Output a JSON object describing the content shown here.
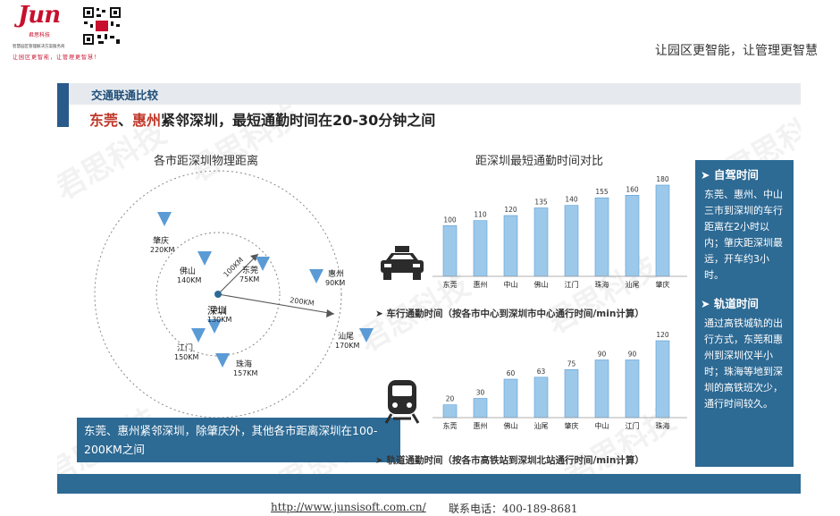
{
  "brand": {
    "logo_text": "Jun",
    "logo_sub": "君思科技",
    "org_line": "智慧园区管理解决方案服务商",
    "slogan": "让园区更智能，让管理更智慧！"
  },
  "header": {
    "slogan_right": "让园区更智能，让管理更智慧"
  },
  "slide": {
    "section_title": "交通联通比较",
    "headline_red1": "东莞",
    "headline_sep": "、",
    "headline_red2": "惠州",
    "headline_rest": "紧邻深圳，最短通勤时间在20-30分钟之间",
    "watermark": "君思科技",
    "map": {
      "title": "各市距深圳物理距离",
      "center": "深圳",
      "ring_labels": [
        "100KM",
        "200KM"
      ],
      "cities": [
        {
          "name": "肇庆",
          "dist": "220KM"
        },
        {
          "name": "佛山",
          "dist": "140KM"
        },
        {
          "name": "东莞",
          "dist": "75KM"
        },
        {
          "name": "惠州",
          "dist": "90KM"
        },
        {
          "name": "中山",
          "dist": "130KM"
        },
        {
          "name": "江门",
          "dist": "150KM"
        },
        {
          "name": "珠海",
          "dist": "157KM"
        },
        {
          "name": "汕尾",
          "dist": "170KM"
        }
      ],
      "caption": "东莞、惠州紧邻深圳，除肇庆外，其他各市距离深圳在100-200KM之间"
    },
    "charts_title": "距深圳最短通勤时间对比",
    "chart1_caption": "车行通勤时间（按各市中心到深圳市中心通行时间/min计算）",
    "chart2_caption": "轨道通勤时间（按各市高铁站到深圳北站通行时间/min计算）",
    "info": {
      "h1": "自驾时间",
      "p1": "东莞、惠州、中山三市到深圳的车行距离在2小时以内；肇庆距深圳最远，开车约3小时。",
      "h2": "轨道时间",
      "p2": "通过高铁城轨的出行方式，东莞和惠州到深圳仅半小时；珠海等地到深圳的高铁班次少，通行时间较久。"
    }
  },
  "footer": {
    "url": "http://www.junsisoft.com.cn/",
    "tel": "联系电话：400-189-8681"
  },
  "colors": {
    "bar": "#9cc9ea",
    "bar_edge": "#5b9bd5",
    "panel": "#2d6a94",
    "accent_red": "#c0392b",
    "title_blue": "#1f4e79"
  },
  "chart_data": [
    {
      "type": "bar",
      "categories": [
        "东莞",
        "惠州",
        "中山",
        "佛山",
        "江门",
        "珠海",
        "汕尾",
        "肇庆"
      ],
      "values": [
        100,
        110,
        120,
        135,
        140,
        155,
        160,
        180
      ],
      "ylim": [
        0,
        180
      ],
      "grid": false,
      "legend": "none"
    },
    {
      "type": "bar",
      "categories": [
        "东莞",
        "惠州",
        "佛山",
        "汕尾",
        "肇庆",
        "中山",
        "江门",
        "珠海"
      ],
      "values": [
        20,
        30,
        60,
        63,
        75,
        90,
        90,
        120
      ],
      "ylim": [
        0,
        120
      ],
      "grid": false,
      "legend": "none"
    }
  ]
}
